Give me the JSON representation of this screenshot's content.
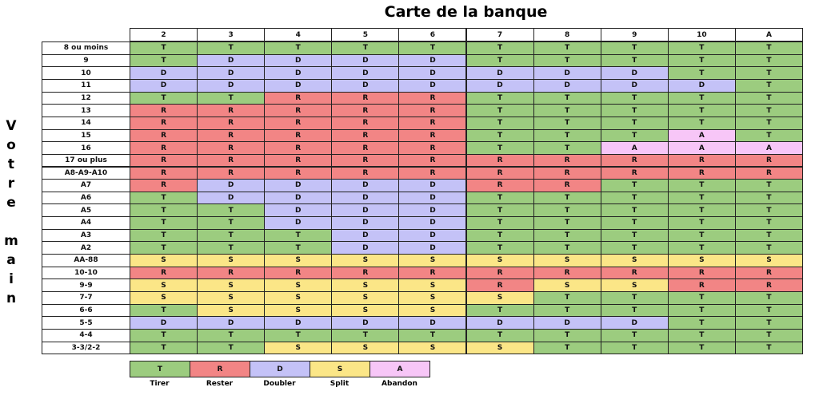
{
  "title": "Carte de la banque",
  "side_label": "Votre main",
  "columns": [
    "2",
    "3",
    "4",
    "5",
    "6",
    "7",
    "8",
    "9",
    "10",
    "A"
  ],
  "rows": [
    {
      "label": "8 ou moins",
      "cells": [
        "T",
        "T",
        "T",
        "T",
        "T",
        "T",
        "T",
        "T",
        "T",
        "T"
      ]
    },
    {
      "label": "9",
      "cells": [
        "T",
        "D",
        "D",
        "D",
        "D",
        "T",
        "T",
        "T",
        "T",
        "T"
      ]
    },
    {
      "label": "10",
      "cells": [
        "D",
        "D",
        "D",
        "D",
        "D",
        "D",
        "D",
        "D",
        "T",
        "T"
      ]
    },
    {
      "label": "11",
      "cells": [
        "D",
        "D",
        "D",
        "D",
        "D",
        "D",
        "D",
        "D",
        "D",
        "T"
      ]
    },
    {
      "label": "12",
      "cells": [
        "T",
        "T",
        "R",
        "R",
        "R",
        "T",
        "T",
        "T",
        "T",
        "T"
      ]
    },
    {
      "label": "13",
      "cells": [
        "R",
        "R",
        "R",
        "R",
        "R",
        "T",
        "T",
        "T",
        "T",
        "T"
      ]
    },
    {
      "label": "14",
      "cells": [
        "R",
        "R",
        "R",
        "R",
        "R",
        "T",
        "T",
        "T",
        "T",
        "T"
      ]
    },
    {
      "label": "15",
      "cells": [
        "R",
        "R",
        "R",
        "R",
        "R",
        "T",
        "T",
        "T",
        "A",
        "T"
      ]
    },
    {
      "label": "16",
      "cells": [
        "R",
        "R",
        "R",
        "R",
        "R",
        "T",
        "T",
        "A",
        "A",
        "A"
      ]
    },
    {
      "label": "17 ou plus",
      "cells": [
        "R",
        "R",
        "R",
        "R",
        "R",
        "R",
        "R",
        "R",
        "R",
        "R"
      ]
    },
    {
      "label": "A8-A9-A10",
      "cells": [
        "R",
        "R",
        "R",
        "R",
        "R",
        "R",
        "R",
        "R",
        "R",
        "R"
      ]
    },
    {
      "label": "A7",
      "cells": [
        "R",
        "D",
        "D",
        "D",
        "D",
        "R",
        "R",
        "T",
        "T",
        "T"
      ]
    },
    {
      "label": "A6",
      "cells": [
        "T",
        "D",
        "D",
        "D",
        "D",
        "T",
        "T",
        "T",
        "T",
        "T"
      ]
    },
    {
      "label": "A5",
      "cells": [
        "T",
        "T",
        "D",
        "D",
        "D",
        "T",
        "T",
        "T",
        "T",
        "T"
      ]
    },
    {
      "label": "A4",
      "cells": [
        "T",
        "T",
        "D",
        "D",
        "D",
        "T",
        "T",
        "T",
        "T",
        "T"
      ]
    },
    {
      "label": "A3",
      "cells": [
        "T",
        "T",
        "T",
        "D",
        "D",
        "T",
        "T",
        "T",
        "T",
        "T"
      ]
    },
    {
      "label": "A2",
      "cells": [
        "T",
        "T",
        "T",
        "D",
        "D",
        "T",
        "T",
        "T",
        "T",
        "T"
      ]
    },
    {
      "label": "AA-88",
      "cells": [
        "S",
        "S",
        "S",
        "S",
        "S",
        "S",
        "S",
        "S",
        "S",
        "S"
      ]
    },
    {
      "label": "10-10",
      "cells": [
        "R",
        "R",
        "R",
        "R",
        "R",
        "R",
        "R",
        "R",
        "R",
        "R"
      ]
    },
    {
      "label": "9-9",
      "cells": [
        "S",
        "S",
        "S",
        "S",
        "S",
        "R",
        "S",
        "S",
        "R",
        "R"
      ]
    },
    {
      "label": "7-7",
      "cells": [
        "S",
        "S",
        "S",
        "S",
        "S",
        "S",
        "T",
        "T",
        "T",
        "T"
      ]
    },
    {
      "label": "6-6",
      "cells": [
        "T",
        "S",
        "S",
        "S",
        "S",
        "T",
        "T",
        "T",
        "T",
        "T"
      ]
    },
    {
      "label": "5-5",
      "cells": [
        "D",
        "D",
        "D",
        "D",
        "D",
        "D",
        "D",
        "D",
        "T",
        "T"
      ]
    },
    {
      "label": "4-4",
      "cells": [
        "T",
        "T",
        "T",
        "T",
        "T",
        "T",
        "T",
        "T",
        "T",
        "T"
      ]
    },
    {
      "label": "3-3/2-2",
      "cells": [
        "T",
        "T",
        "S",
        "S",
        "S",
        "S",
        "T",
        "T",
        "T",
        "T"
      ]
    }
  ],
  "legend": [
    {
      "code": "T",
      "label": "Tirer",
      "color": "#9ccc7f"
    },
    {
      "code": "R",
      "label": "Rester",
      "color": "#f28585"
    },
    {
      "code": "D",
      "label": "Doubler",
      "color": "#c4c2f7"
    },
    {
      "code": "S",
      "label": "Split",
      "color": "#fbe687"
    },
    {
      "code": "A",
      "label": "Abandon",
      "color": "#f7c6f7"
    }
  ]
}
